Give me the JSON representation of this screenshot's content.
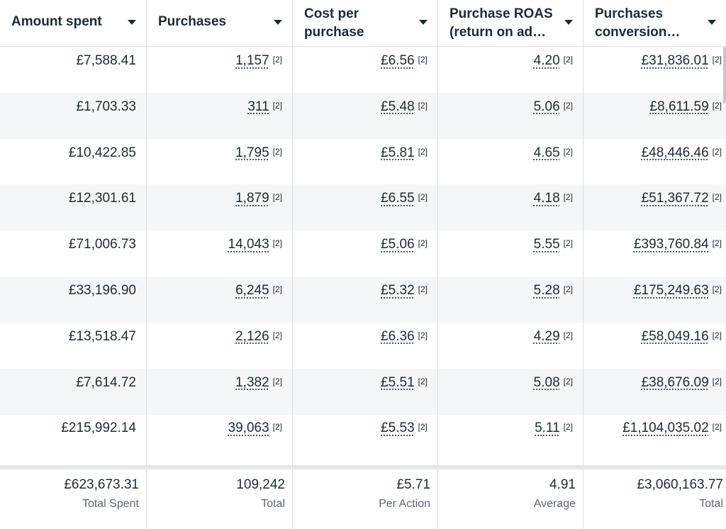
{
  "columns": [
    {
      "label": "Amount spent",
      "lines": 1
    },
    {
      "label": "Purchases",
      "lines": 1
    },
    {
      "label": "Cost per purchase",
      "lines": 2
    },
    {
      "label": "Purchase ROAS (return on ad…",
      "lines": 2
    },
    {
      "label": "Purchases conversion…",
      "lines": 2
    }
  ],
  "note_marker": "[2]",
  "rows": [
    [
      "£7,588.41",
      "1,157",
      "£6.56",
      "4.20",
      "£31,836.01"
    ],
    [
      "£1,703.33",
      "311",
      "£5.48",
      "5.06",
      "£8,611.59"
    ],
    [
      "£10,422.85",
      "1,795",
      "£5.81",
      "4.65",
      "£48,446.46"
    ],
    [
      "£12,301.61",
      "1,879",
      "£6.55",
      "4.18",
      "£51,367.72"
    ],
    [
      "£71,006.73",
      "14,043",
      "£5.06",
      "5.55",
      "£393,760.84"
    ],
    [
      "£33,196.90",
      "6,245",
      "£5.32",
      "5.28",
      "£175,249.63"
    ],
    [
      "£13,518.47",
      "2,126",
      "£6.36",
      "4.29",
      "£58,049.16"
    ],
    [
      "£7,614.72",
      "1,382",
      "£5.51",
      "5.08",
      "£38,676.09"
    ],
    [
      "£215,992.14",
      "39,063",
      "£5.53",
      "5.11",
      "£1,104,035.02"
    ]
  ],
  "totals": [
    {
      "value": "£623,673.31",
      "label": "Total Spent"
    },
    {
      "value": "109,242",
      "label": "Total"
    },
    {
      "value": "£5.71",
      "label": "Per Action"
    },
    {
      "value": "4.91",
      "label": "Average"
    },
    {
      "value": "£3,060,163.77",
      "label": "Total"
    }
  ]
}
